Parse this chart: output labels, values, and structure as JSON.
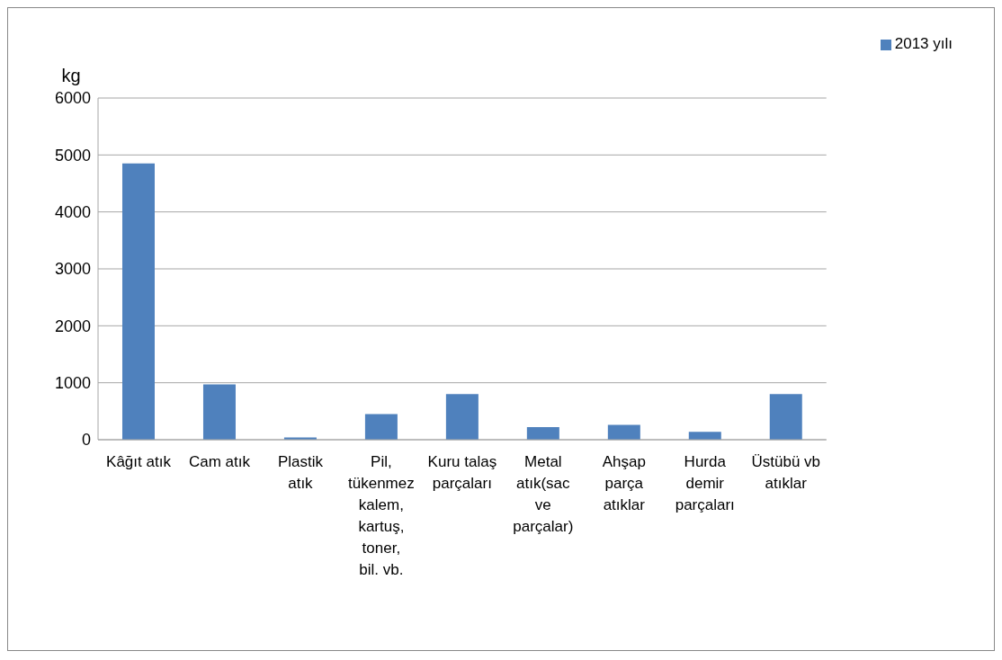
{
  "chart_data": {
    "type": "bar",
    "ylabel": "kg",
    "categories": [
      "Kâğıt atık",
      "Cam atık",
      "Plastik atık",
      "Pil, tükenmez kalem, kartuş, toner, bil. vb.",
      "Kuru talaş parçaları",
      "Metal atık(sac ve parçalar)",
      "Ahşap parça atıklar",
      "Hurda demir parçaları",
      "Üstübü vb atıklar"
    ],
    "series": [
      {
        "name": "2013 yılı",
        "color": "#4f81bd",
        "values": [
          4850,
          970,
          40,
          450,
          800,
          220,
          260,
          140,
          800
        ]
      }
    ],
    "ylim": [
      0,
      6000
    ],
    "yticks": [
      0,
      1000,
      2000,
      3000,
      4000,
      5000,
      6000
    ],
    "grid": "y",
    "legend": "top right"
  }
}
